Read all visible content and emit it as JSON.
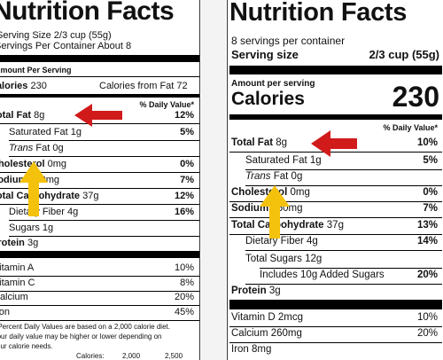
{
  "left": {
    "title": "Nutrition Facts",
    "serving_size": "Serving Size 2/3 cup (55g)",
    "servings": "Servings Per Container About 8",
    "amount_per_serving": "Amount Per Serving",
    "calories_label": "Calories",
    "calories_value": "230",
    "calories_from_fat": "Calories from Fat 72",
    "daily_value_header": "% Daily Value*",
    "rows": [
      {
        "label": "Total Fat",
        "amount": "8g",
        "dv": "12%"
      },
      {
        "label": "Saturated Fat",
        "amount": "1g",
        "dv": "5%"
      },
      {
        "label": "Trans",
        "amount": "Fat 0g",
        "dv": ""
      },
      {
        "label": "Cholesterol",
        "amount": "0mg",
        "dv": "0%"
      },
      {
        "label": "Sodium",
        "amount": "160mg",
        "dv": "7%"
      },
      {
        "label": "Total Carbohydrate",
        "amount": "37g",
        "dv": "12%"
      },
      {
        "label": "Dietary Fiber",
        "amount": "4g",
        "dv": "16%"
      },
      {
        "label": "Sugars",
        "amount": "1g",
        "dv": ""
      },
      {
        "label": "Protein",
        "amount": "3g",
        "dv": ""
      }
    ],
    "vitamins": [
      {
        "label": "Vitamin A",
        "dv": "10%"
      },
      {
        "label": "Vitamin C",
        "dv": "8%"
      },
      {
        "label": "Calcium",
        "dv": "20%"
      },
      {
        "label": "Iron",
        "dv": "45%"
      }
    ],
    "footnote_1": "* Percent Daily Values are based on a 2,000 calorie diet.",
    "footnote_2": "Your daily value may be higher or lower depending on",
    "footnote_3": "your calorie needs.",
    "footnote_calories": "Calories:",
    "footnote_2000": "2,000",
    "footnote_2500": "2,500"
  },
  "right": {
    "title": "Nutrition Facts",
    "servings": "8 servings per container",
    "serving_size_label": "Serving size",
    "serving_size_value": "2/3 cup (55g)",
    "amount_per_serving": "Amount per serving",
    "calories_label": "Calories",
    "calories_value": "230",
    "daily_value_header": "% Daily Value*",
    "rows": [
      {
        "label": "Total Fat",
        "amount": "8g",
        "dv": "10%"
      },
      {
        "label": "Saturated Fat",
        "amount": "1g",
        "dv": "5%"
      },
      {
        "label": "Trans",
        "amount": "Fat 0g",
        "dv": ""
      },
      {
        "label": "Cholesterol",
        "amount": "0mg",
        "dv": "0%"
      },
      {
        "label": "Sodium",
        "amount": "160mg",
        "dv": "7%"
      },
      {
        "label": "Total Carbohydrate",
        "amount": "37g",
        "dv": "13%"
      },
      {
        "label": "Dietary Fiber",
        "amount": "4g",
        "dv": "14%"
      },
      {
        "label": "Total Sugars",
        "amount": "12g",
        "dv": ""
      },
      {
        "label": "Includes 10g Added Sugars",
        "amount": "",
        "dv": "20%"
      },
      {
        "label": "Protein",
        "amount": "3g",
        "dv": ""
      }
    ],
    "vitamins": [
      {
        "label": "Vitamin D",
        "amount": "2mcg",
        "dv": "10%"
      },
      {
        "label": "Calcium",
        "amount": "260mg",
        "dv": "20%"
      },
      {
        "label": "Iron",
        "amount": "8mg",
        "dv": ""
      }
    ]
  },
  "colors": {
    "red_arrow": "#d11a1a",
    "yellow_arrow": "#f4c20d"
  }
}
